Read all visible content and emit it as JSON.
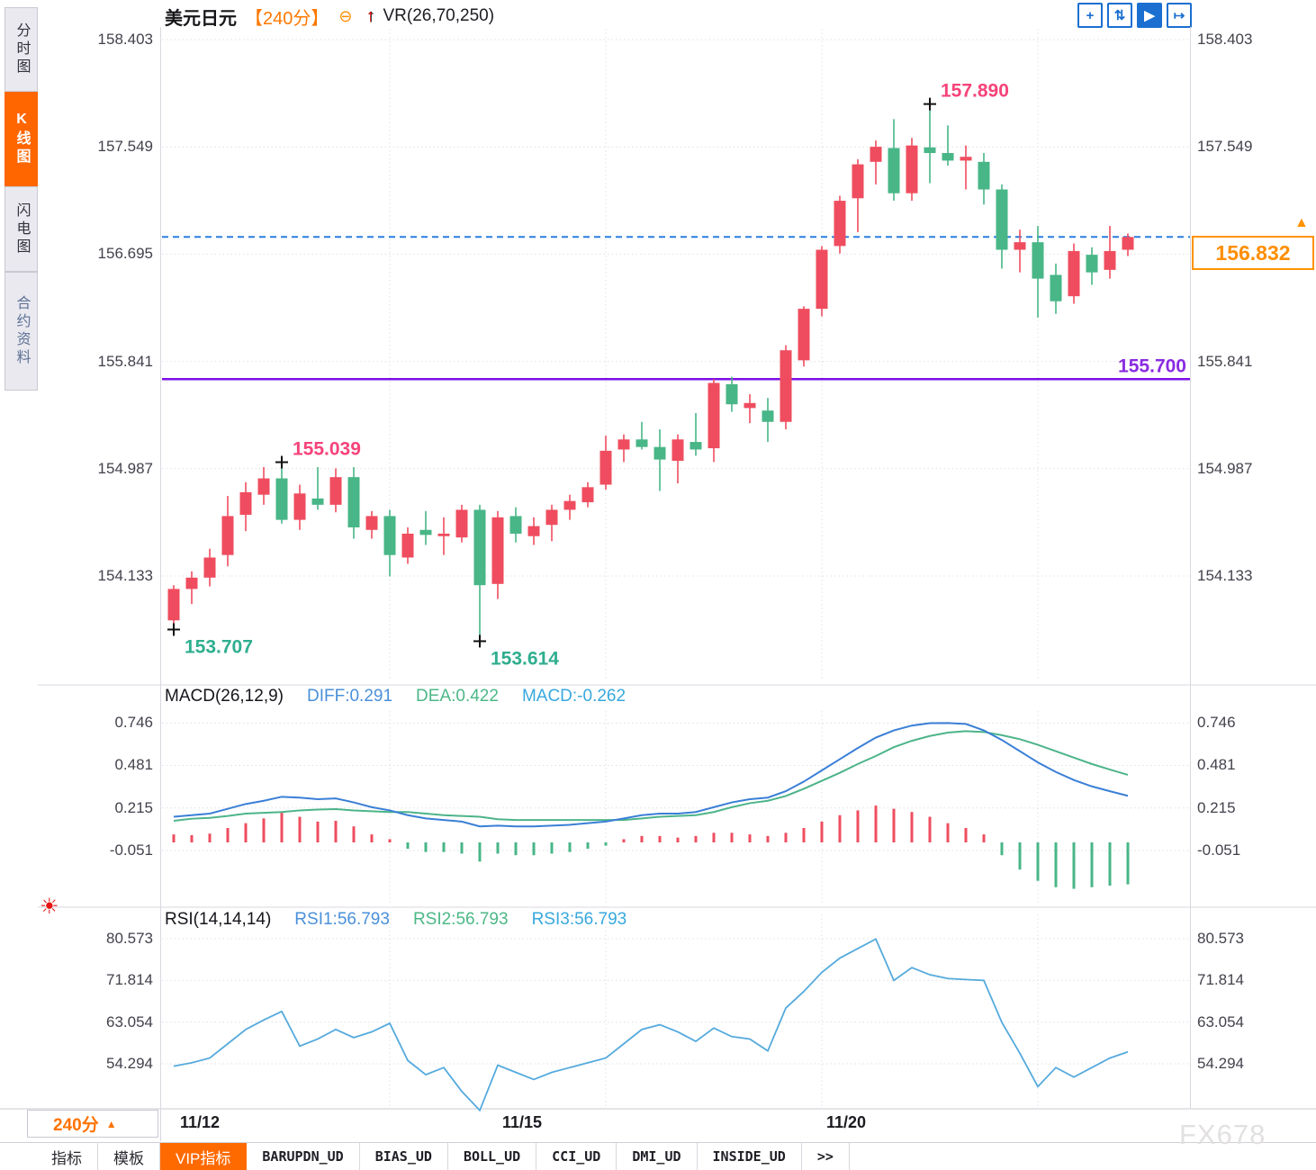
{
  "colors": {
    "up": "#ef4d5f",
    "down": "#48b687",
    "diff_line": "#3a7fd6",
    "dea_line": "#4db48a",
    "rsi_line": "#55aadd",
    "dashed_price_line": "#2b7de0",
    "support_line": "#7d0ee6",
    "support_label": "#8a2be2",
    "annotation_high": "#f5437a",
    "annotation_low": "#2fae8f",
    "accent_orange": "#ff6600",
    "toolbar_blue": "#1a6fd0"
  },
  "sidebar": {
    "items": [
      {
        "label": "分时图",
        "active": false
      },
      {
        "label": "K线图",
        "active": true
      },
      {
        "label": "闪电图",
        "active": false
      },
      {
        "label": "合约资料",
        "active": false
      }
    ]
  },
  "header": {
    "symbol": "美元日元",
    "period": "【240分】",
    "collapse_glyph": "⊖",
    "arrow_glyph": "↑",
    "indicator": "VR(26,70,250)"
  },
  "toolbar": {
    "icons": [
      {
        "name": "crosshair-tool-icon",
        "glyph": "+",
        "active": false
      },
      {
        "name": "axis-scale-icon",
        "glyph": "⇅",
        "active": false
      },
      {
        "name": "auto-scale-icon",
        "glyph": "▶",
        "active": true
      },
      {
        "name": "pan-right-icon",
        "glyph": "↦",
        "active": false
      }
    ]
  },
  "main_chart": {
    "current_price": {
      "label": "156.832",
      "marker_glyph": "▲"
    },
    "support": {
      "label": "155.700"
    }
  },
  "macd_header": {
    "title": "MACD(26,12,9)",
    "diff": "DIFF:0.291",
    "dea": "DEA:0.422",
    "macd": "MACD:-0.262"
  },
  "rsi_header": {
    "title": "RSI(14,14,14)",
    "rsi1": "RSI1:56.793",
    "rsi2": "RSI2:56.793",
    "rsi3": "RSI3:56.793"
  },
  "footer": {
    "period_selector": {
      "label": "240分",
      "arrow": "▲"
    },
    "dates": [
      "11/12",
      "11/15",
      "11/20"
    ],
    "tabs": [
      {
        "label": "指标",
        "active": false,
        "mono": false
      },
      {
        "label": "模板",
        "active": false,
        "mono": false
      },
      {
        "label": "VIP指标",
        "active": true,
        "mono": false
      },
      {
        "label": "BARUPDN_UD",
        "active": false,
        "mono": true
      },
      {
        "label": "BIAS_UD",
        "active": false,
        "mono": true
      },
      {
        "label": "BOLL_UD",
        "active": false,
        "mono": true
      },
      {
        "label": "CCI_UD",
        "active": false,
        "mono": true
      },
      {
        "label": "DMI_UD",
        "active": false,
        "mono": true
      },
      {
        "label": "INSIDE_UD",
        "active": false,
        "mono": true
      },
      {
        "label": ">>",
        "active": false,
        "mono": true
      }
    ]
  },
  "watermark": "FX678",
  "chart_data": [
    {
      "type": "candlestick",
      "title": "美元日元 240分",
      "ylim": [
        153.45,
        158.403
      ],
      "axis_ticks": [
        "158.403",
        "157.549",
        "156.695",
        "155.841",
        "154.987",
        "154.133"
      ],
      "x_date_labels": [
        "11/12",
        "11/15",
        "11/20"
      ],
      "current_price": 156.832,
      "support_level": 155.7,
      "annotations": [
        {
          "text": "153.707",
          "price": 153.707,
          "index": 0,
          "kind": "low"
        },
        {
          "text": "155.039",
          "price": 155.039,
          "index": 6,
          "kind": "high"
        },
        {
          "text": "153.614",
          "price": 153.614,
          "index": 17,
          "kind": "low"
        },
        {
          "text": "157.890",
          "price": 157.89,
          "index": 42,
          "kind": "high"
        }
      ],
      "ohlc": [
        [
          153.78,
          154.06,
          153.707,
          154.03
        ],
        [
          154.03,
          154.17,
          153.91,
          154.12
        ],
        [
          154.12,
          154.35,
          154.05,
          154.28
        ],
        [
          154.3,
          154.77,
          154.21,
          154.61
        ],
        [
          154.62,
          154.88,
          154.49,
          154.8
        ],
        [
          154.78,
          155.0,
          154.7,
          154.91
        ],
        [
          154.91,
          155.039,
          154.55,
          154.58
        ],
        [
          154.58,
          154.86,
          154.5,
          154.79
        ],
        [
          154.75,
          155.0,
          154.66,
          154.7
        ],
        [
          154.7,
          154.99,
          154.64,
          154.92
        ],
        [
          154.92,
          155.0,
          154.43,
          154.52
        ],
        [
          154.5,
          154.65,
          154.43,
          154.61
        ],
        [
          154.61,
          154.66,
          154.13,
          154.3
        ],
        [
          154.28,
          154.52,
          154.23,
          154.47
        ],
        [
          154.5,
          154.65,
          154.38,
          154.46
        ],
        [
          154.45,
          154.6,
          154.3,
          154.47
        ],
        [
          154.44,
          154.7,
          154.4,
          154.66
        ],
        [
          154.66,
          154.7,
          153.614,
          154.06
        ],
        [
          154.07,
          154.65,
          153.95,
          154.6
        ],
        [
          154.61,
          154.68,
          154.4,
          154.47
        ],
        [
          154.45,
          154.6,
          154.38,
          154.53
        ],
        [
          154.54,
          154.7,
          154.41,
          154.66
        ],
        [
          154.66,
          154.78,
          154.58,
          154.73
        ],
        [
          154.72,
          154.88,
          154.68,
          154.84
        ],
        [
          154.86,
          155.25,
          154.82,
          155.13
        ],
        [
          155.14,
          155.26,
          155.04,
          155.22
        ],
        [
          155.22,
          155.36,
          155.14,
          155.16
        ],
        [
          155.16,
          155.3,
          154.81,
          155.06
        ],
        [
          155.05,
          155.26,
          154.87,
          155.22
        ],
        [
          155.2,
          155.43,
          155.09,
          155.14
        ],
        [
          155.15,
          155.7,
          155.04,
          155.67
        ],
        [
          155.66,
          155.72,
          155.44,
          155.5
        ],
        [
          155.47,
          155.58,
          155.35,
          155.51
        ],
        [
          155.45,
          155.55,
          155.2,
          155.36
        ],
        [
          155.36,
          155.97,
          155.3,
          155.93
        ],
        [
          155.85,
          156.28,
          155.8,
          156.26
        ],
        [
          156.26,
          156.76,
          156.2,
          156.73
        ],
        [
          156.76,
          157.16,
          156.7,
          157.12
        ],
        [
          157.14,
          157.45,
          156.87,
          157.41
        ],
        [
          157.43,
          157.6,
          157.25,
          157.55
        ],
        [
          157.54,
          157.77,
          157.12,
          157.18
        ],
        [
          157.18,
          157.62,
          157.12,
          157.56
        ],
        [
          157.545,
          157.89,
          157.26,
          157.5
        ],
        [
          157.5,
          157.72,
          157.4,
          157.44
        ],
        [
          157.44,
          157.56,
          157.21,
          157.47
        ],
        [
          157.43,
          157.5,
          157.09,
          157.21
        ],
        [
          157.21,
          157.25,
          156.58,
          156.73
        ],
        [
          156.73,
          156.89,
          156.55,
          156.79
        ],
        [
          156.79,
          156.92,
          156.19,
          156.5
        ],
        [
          156.53,
          156.62,
          156.22,
          156.32
        ],
        [
          156.36,
          156.78,
          156.3,
          156.72
        ],
        [
          156.69,
          156.75,
          156.45,
          156.55
        ],
        [
          156.57,
          156.92,
          156.5,
          156.72
        ],
        [
          156.73,
          156.86,
          156.68,
          156.832
        ]
      ]
    },
    {
      "type": "macd",
      "title": "MACD(26,12,9)",
      "axis_ticks": [
        "0.746",
        "0.481",
        "0.215",
        "-0.051"
      ],
      "hist": [
        0.05,
        0.045,
        0.055,
        0.09,
        0.12,
        0.15,
        0.19,
        0.16,
        0.13,
        0.135,
        0.1,
        0.05,
        0.02,
        -0.04,
        -0.06,
        -0.06,
        -0.07,
        -0.12,
        -0.07,
        -0.08,
        -0.08,
        -0.07,
        -0.06,
        -0.04,
        -0.02,
        0.02,
        0.04,
        0.04,
        0.03,
        0.04,
        0.06,
        0.06,
        0.05,
        0.04,
        0.06,
        0.09,
        0.13,
        0.17,
        0.2,
        0.23,
        0.21,
        0.19,
        0.16,
        0.12,
        0.09,
        0.05,
        -0.08,
        -0.17,
        -0.24,
        -0.28,
        -0.29,
        -0.28,
        -0.27,
        -0.262
      ],
      "diff": [
        0.16,
        0.17,
        0.18,
        0.21,
        0.24,
        0.26,
        0.285,
        0.28,
        0.27,
        0.275,
        0.25,
        0.22,
        0.2,
        0.17,
        0.15,
        0.14,
        0.13,
        0.1,
        0.105,
        0.1,
        0.1,
        0.105,
        0.11,
        0.12,
        0.13,
        0.15,
        0.17,
        0.18,
        0.18,
        0.19,
        0.22,
        0.25,
        0.27,
        0.28,
        0.32,
        0.38,
        0.45,
        0.52,
        0.59,
        0.655,
        0.7,
        0.73,
        0.745,
        0.746,
        0.74,
        0.7,
        0.64,
        0.57,
        0.5,
        0.44,
        0.39,
        0.35,
        0.32,
        0.291
      ],
      "dea": [
        0.135,
        0.148,
        0.153,
        0.165,
        0.18,
        0.185,
        0.19,
        0.2,
        0.205,
        0.208,
        0.2,
        0.195,
        0.19,
        0.19,
        0.18,
        0.17,
        0.165,
        0.16,
        0.145,
        0.14,
        0.14,
        0.14,
        0.14,
        0.14,
        0.14,
        0.14,
        0.15,
        0.16,
        0.165,
        0.17,
        0.19,
        0.22,
        0.245,
        0.26,
        0.29,
        0.335,
        0.385,
        0.435,
        0.49,
        0.54,
        0.595,
        0.635,
        0.665,
        0.686,
        0.695,
        0.69,
        0.67,
        0.645,
        0.61,
        0.57,
        0.53,
        0.49,
        0.455,
        0.422
      ]
    },
    {
      "type": "line",
      "title": "RSI(14,14,14)",
      "axis_ticks": [
        "80.573",
        "71.814",
        "63.054",
        "54.294"
      ],
      "values": [
        53.8,
        54.5,
        55.5,
        58.5,
        61.5,
        63.5,
        65.3,
        58.0,
        59.5,
        61.5,
        59.8,
        61.0,
        62.8,
        55.0,
        52.0,
        53.5,
        48.5,
        44.5,
        54.0,
        52.5,
        51.0,
        52.5,
        53.5,
        54.5,
        55.5,
        58.5,
        61.5,
        62.5,
        61.0,
        59.0,
        61.8,
        60.0,
        59.5,
        57.0,
        66.0,
        69.5,
        73.5,
        76.5,
        78.5,
        80.5,
        71.8,
        74.5,
        73.0,
        72.2,
        72.0,
        71.8,
        63.0,
        56.5,
        49.5,
        53.5,
        51.5,
        53.5,
        55.5,
        56.793
      ]
    }
  ]
}
